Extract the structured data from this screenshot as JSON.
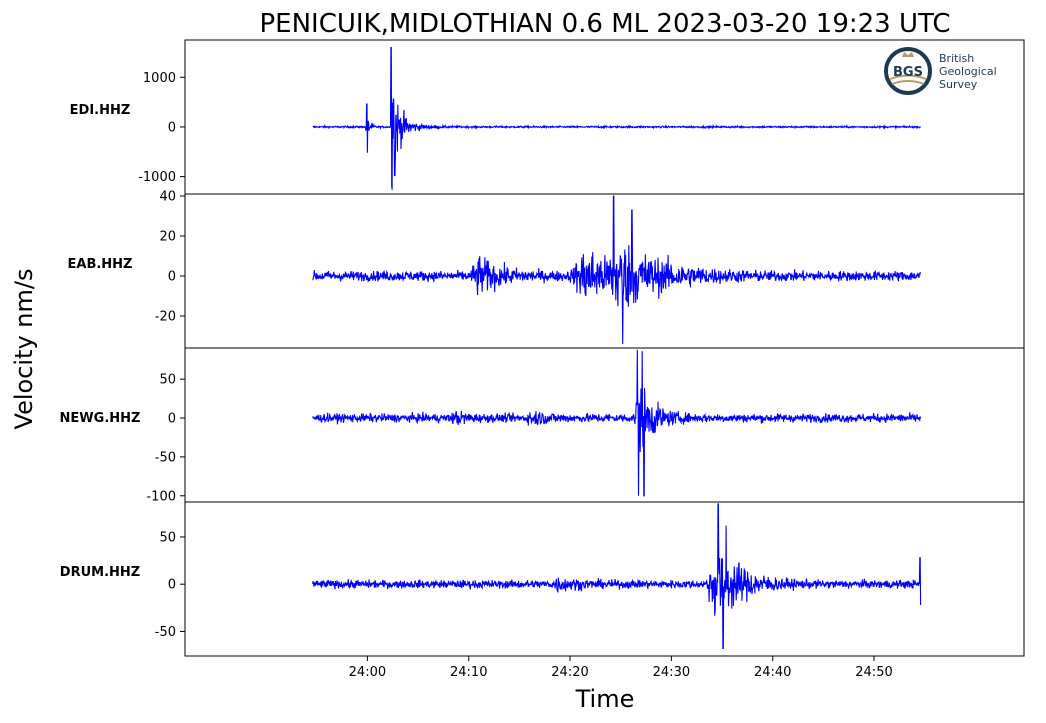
{
  "title": "PENICUIK,MIDLOTHIAN 0.6 ML   2023-03-20 19:23 UTC",
  "ylabel": "Velocity nm/s",
  "xlabel": "Time",
  "logo": {
    "abbr": "BGS",
    "lines": [
      "British",
      "Geological",
      "Survey"
    ],
    "colors": {
      "ring": "#1e3a4f",
      "gold": "#b8996a"
    }
  },
  "chart_data": {
    "type": "line",
    "x_unit": "minutes",
    "xlim": [
      23.7,
      25.08
    ],
    "x_ticks": [
      {
        "v": 24.0,
        "label": "24:00"
      },
      {
        "v": 24.1667,
        "label": "24:10"
      },
      {
        "v": 24.3333,
        "label": "24:20"
      },
      {
        "v": 24.5,
        "label": "24:30"
      },
      {
        "v": 24.6667,
        "label": "24:40"
      },
      {
        "v": 24.8333,
        "label": "24:50"
      }
    ],
    "line_color": "#0000ff",
    "x_start": 23.91,
    "x_end": 24.91,
    "panels": [
      {
        "station": "EDI.HHZ",
        "ylim": [
          -1350,
          1750
        ],
        "y_ticks": [
          {
            "v": 1000,
            "label": "1000"
          },
          {
            "v": 0,
            "label": "0"
          },
          {
            "v": -1000,
            "label": "-1000"
          }
        ],
        "noise": 22,
        "events": [
          {
            "x": 23.998,
            "amp": 420,
            "rise": 0.001,
            "decay": 0.006
          },
          {
            "x": 24.04,
            "amp": 1600,
            "rise": 0.0008,
            "decay": 0.012
          },
          {
            "x": 24.06,
            "amp": 200,
            "rise": 0.004,
            "decay": 0.03
          }
        ],
        "peaks": [
          {
            "x": 23.999,
            "y": 460
          },
          {
            "x": 24.0,
            "y": -520
          },
          {
            "x": 24.039,
            "y": 1600
          },
          {
            "x": 24.04,
            "y": -1170
          },
          {
            "x": 24.043,
            "y": 560
          },
          {
            "x": 24.045,
            "y": -980
          }
        ]
      },
      {
        "station": "EAB.HHZ",
        "ylim": [
          -36,
          41
        ],
        "y_ticks": [
          {
            "v": 40,
            "label": "40"
          },
          {
            "v": 20,
            "label": "20"
          },
          {
            "v": 0,
            "label": "0"
          },
          {
            "v": -20,
            "label": "-20"
          }
        ],
        "noise": 3.2,
        "events": [
          {
            "x": 24.18,
            "amp": 14,
            "rise": 0.012,
            "decay": 0.05
          },
          {
            "x": 24.36,
            "amp": 20,
            "rise": 0.03,
            "decay": 0.06
          },
          {
            "x": 24.41,
            "amp": 24,
            "rise": 0.02,
            "decay": 0.09
          }
        ],
        "peaks": [
          {
            "x": 24.405,
            "y": 40
          },
          {
            "x": 24.42,
            "y": -34
          },
          {
            "x": 24.435,
            "y": 33
          }
        ]
      },
      {
        "station": "NEWG.HHZ",
        "ylim": [
          -108,
          90
        ],
        "y_ticks": [
          {
            "v": 50,
            "label": "50"
          },
          {
            "v": 0,
            "label": "0"
          },
          {
            "v": -50,
            "label": "-50"
          },
          {
            "v": -100,
            "label": "-100"
          }
        ],
        "noise": 7,
        "events": [
          {
            "x": 24.145,
            "amp": 12,
            "rise": 0.01,
            "decay": 0.03
          },
          {
            "x": 24.27,
            "amp": 14,
            "rise": 0.01,
            "decay": 0.04
          },
          {
            "x": 24.443,
            "amp": 68,
            "rise": 0.004,
            "decay": 0.03
          }
        ],
        "peaks": [
          {
            "x": 24.444,
            "y": 88
          },
          {
            "x": 24.446,
            "y": -100
          },
          {
            "x": 24.452,
            "y": 86
          },
          {
            "x": 24.455,
            "y": -100
          }
        ]
      },
      {
        "station": "DRUM.HHZ",
        "ylim": [
          -76,
          87
        ],
        "y_ticks": [
          {
            "v": 50,
            "label": "50"
          },
          {
            "v": 0,
            "label": "0"
          },
          {
            "v": -50,
            "label": "-50"
          }
        ],
        "noise": 5.5,
        "events": [
          {
            "x": 24.31,
            "amp": 11,
            "rise": 0.006,
            "decay": 0.05
          },
          {
            "x": 24.575,
            "amp": 55,
            "rise": 0.02,
            "decay": 0.05
          }
        ],
        "peaks": [
          {
            "x": 24.577,
            "y": 85
          },
          {
            "x": 24.585,
            "y": -68
          },
          {
            "x": 24.59,
            "y": 62
          },
          {
            "x": 24.909,
            "y": 28
          },
          {
            "x": 24.91,
            "y": -22
          }
        ]
      }
    ]
  }
}
